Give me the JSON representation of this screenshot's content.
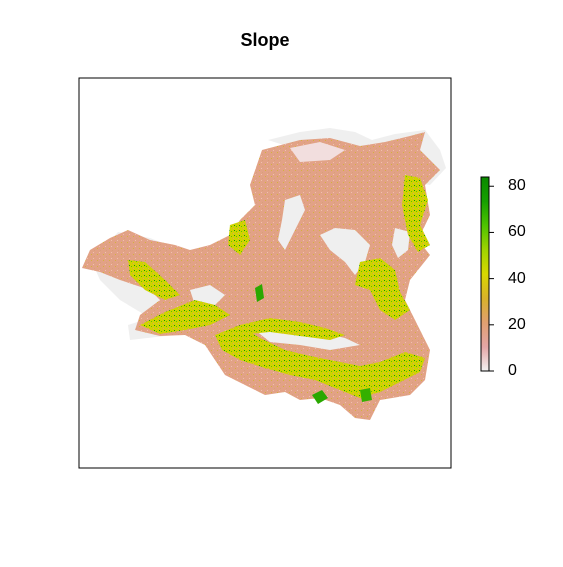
{
  "title": "Slope",
  "legend": {
    "min": 0,
    "max": 84,
    "ticks": [
      "0",
      "20",
      "40",
      "60",
      "80"
    ],
    "tick_values": [
      0,
      20,
      40,
      60,
      80
    ],
    "colors": [
      "#f2f2f2",
      "#e4a6a6",
      "#e0a070",
      "#d8b22a",
      "#d8d800",
      "#9fd400",
      "#4ec300",
      "#16a000",
      "#0a8a00"
    ]
  },
  "colors": {
    "background_nodata": "#efefef",
    "frame": "#000000"
  }
}
